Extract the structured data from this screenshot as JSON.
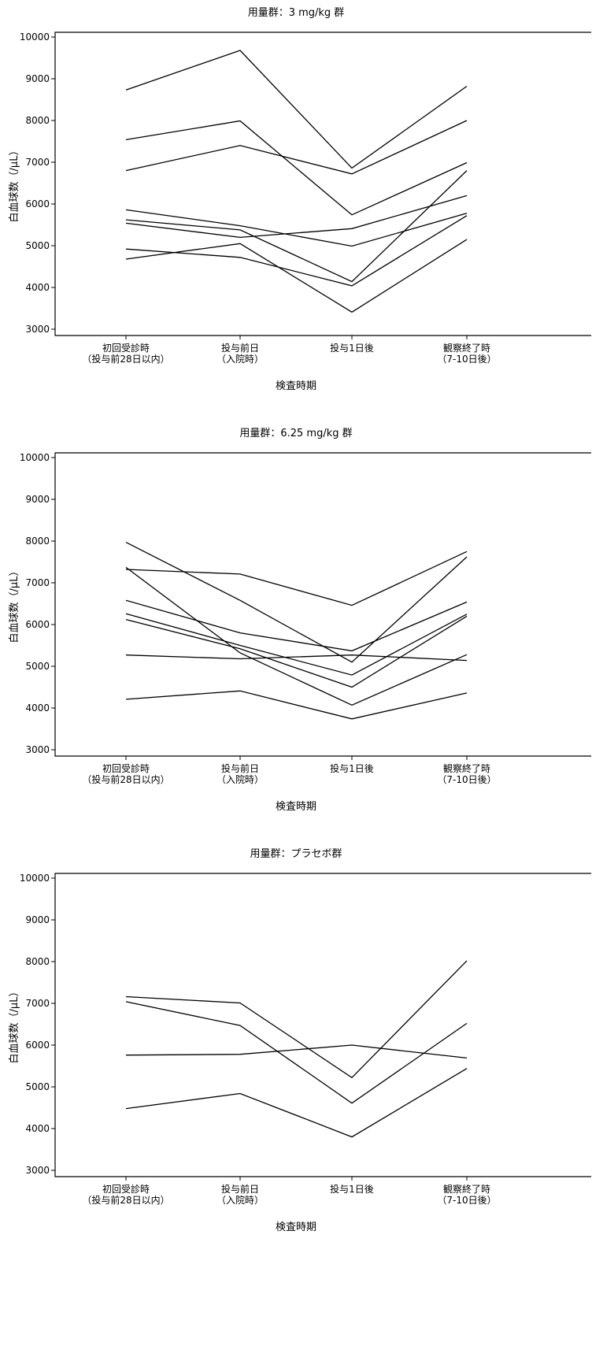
{
  "colors": {
    "line": "#000000",
    "background": "#ffffff"
  },
  "chart_data": [
    {
      "type": "line",
      "title": "用量群：3 mg/kg 群",
      "xlabel": "検査時期",
      "ylabel": "白血球数（/μL）",
      "categories": [
        [
          "初回受診時",
          "（投与前28日以内）"
        ],
        [
          "投与前日",
          "（入院時）"
        ],
        [
          "投与1日後"
        ],
        [
          "観察終了時",
          "（7-10日後）"
        ]
      ],
      "yticks": [
        10000,
        9000,
        8000,
        7000,
        6000,
        5000,
        4000,
        3000
      ],
      "ylim": [
        3000,
        10000
      ],
      "grid": false,
      "legend": "none",
      "series": [
        {
          "values": [
            8730,
            9680,
            6860,
            8820
          ]
        },
        {
          "values": [
            7540,
            7990,
            5740,
            6990
          ]
        },
        {
          "values": [
            6800,
            7400,
            6720,
            8000
          ]
        },
        {
          "values": [
            5860,
            5480,
            4990,
            5780
          ]
        },
        {
          "values": [
            5620,
            5380,
            4140,
            6800
          ]
        },
        {
          "values": [
            5540,
            5200,
            5410,
            6200
          ]
        },
        {
          "values": [
            4920,
            4720,
            4040,
            5720
          ]
        },
        {
          "values": [
            4680,
            5050,
            3410,
            5150
          ]
        }
      ]
    },
    {
      "type": "line",
      "title": "用量群：6.25 mg/kg 群",
      "xlabel": "検査時期",
      "ylabel": "白血球数（/μL）",
      "categories": [
        [
          "初回受診時",
          "（投与前28日以内）"
        ],
        [
          "投与前日",
          "（入院時）"
        ],
        [
          "投与1日後"
        ],
        [
          "観察終了時",
          "（7-10日後）"
        ]
      ],
      "yticks": [
        10000,
        9000,
        8000,
        7000,
        6000,
        5000,
        4000,
        3000
      ],
      "ylim": [
        3000,
        10000
      ],
      "grid": false,
      "legend": "none",
      "series": [
        {
          "values": [
            7320,
            7210,
            6460,
            7750
          ]
        },
        {
          "values": [
            7970,
            6580,
            5100,
            7620
          ]
        },
        {
          "values": [
            6580,
            5800,
            5370,
            6540
          ]
        },
        {
          "values": [
            7370,
            5320,
            4070,
            5280
          ]
        },
        {
          "values": [
            6260,
            5500,
            4790,
            6250
          ]
        },
        {
          "values": [
            6120,
            5420,
            4500,
            6200
          ]
        },
        {
          "values": [
            5270,
            5180,
            5270,
            5140
          ]
        },
        {
          "values": [
            4210,
            4410,
            3740,
            4360
          ]
        }
      ]
    },
    {
      "type": "line",
      "title": "用量群：プラセボ群",
      "xlabel": "検査時期",
      "ylabel": "白血球数（/μL）",
      "categories": [
        [
          "初回受診時",
          "（投与前28日以内）"
        ],
        [
          "投与前日",
          "（入院時）"
        ],
        [
          "投与1日後"
        ],
        [
          "観察終了時",
          "（7-10日後）"
        ]
      ],
      "yticks": [
        10000,
        9000,
        8000,
        7000,
        6000,
        5000,
        4000,
        3000
      ],
      "ylim": [
        3000,
        10000
      ],
      "grid": false,
      "legend": "none",
      "series": [
        {
          "values": [
            7160,
            7010,
            5220,
            8020
          ]
        },
        {
          "values": [
            7040,
            6470,
            4610,
            6520
          ]
        },
        {
          "values": [
            5760,
            5780,
            6000,
            5690
          ]
        },
        {
          "values": [
            4480,
            4840,
            3800,
            5440
          ]
        }
      ]
    }
  ]
}
